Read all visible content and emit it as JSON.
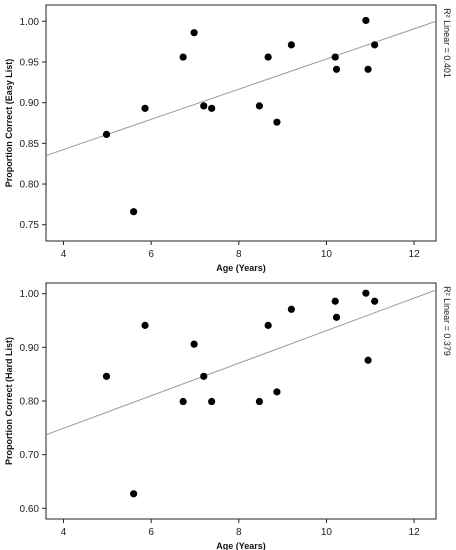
{
  "chart_data": [
    {
      "type": "scatter",
      "xlabel": "Age (Years)",
      "ylabel": "Proportion Correct (Easy List)",
      "xlim": [
        3.6,
        12.5
      ],
      "ylim": [
        0.73,
        1.02
      ],
      "xticks": [
        "4",
        "6",
        "8",
        "10",
        "12"
      ],
      "yticks": [
        "0.75",
        "0.80",
        "0.85",
        "0.90",
        "0.95",
        "1.00"
      ],
      "fit_line": {
        "x": [
          3.6,
          12.5
        ],
        "y": [
          0.835,
          1.0
        ]
      },
      "r2_label": "R² Linear = 0.401",
      "points": [
        {
          "x": 4.98,
          "y": 0.861
        },
        {
          "x": 5.6,
          "y": 0.766
        },
        {
          "x": 5.86,
          "y": 0.893
        },
        {
          "x": 6.73,
          "y": 0.956
        },
        {
          "x": 6.98,
          "y": 0.986
        },
        {
          "x": 7.2,
          "y": 0.896
        },
        {
          "x": 7.38,
          "y": 0.893
        },
        {
          "x": 8.47,
          "y": 0.896
        },
        {
          "x": 8.67,
          "y": 0.956
        },
        {
          "x": 8.87,
          "y": 0.876
        },
        {
          "x": 9.2,
          "y": 0.971
        },
        {
          "x": 10.2,
          "y": 0.956
        },
        {
          "x": 10.23,
          "y": 0.941
        },
        {
          "x": 10.9,
          "y": 1.001
        },
        {
          "x": 10.95,
          "y": 0.941
        },
        {
          "x": 11.1,
          "y": 0.971
        }
      ]
    },
    {
      "type": "scatter",
      "xlabel": "Age (Years)",
      "ylabel": "Proportion Correct (Hard List)",
      "xlim": [
        3.6,
        12.5
      ],
      "ylim": [
        0.58,
        1.02
      ],
      "xticks": [
        "4",
        "6",
        "8",
        "10",
        "12"
      ],
      "yticks": [
        "0.60",
        "0.70",
        "0.80",
        "0.90",
        "1.00"
      ],
      "fit_line": {
        "x": [
          3.6,
          12.5
        ],
        "y": [
          0.737,
          1.007
        ]
      },
      "r2_label": "R² Linear = 0.379",
      "points": [
        {
          "x": 4.98,
          "y": 0.846
        },
        {
          "x": 5.6,
          "y": 0.627
        },
        {
          "x": 5.86,
          "y": 0.941
        },
        {
          "x": 6.73,
          "y": 0.799
        },
        {
          "x": 6.98,
          "y": 0.906
        },
        {
          "x": 7.2,
          "y": 0.846
        },
        {
          "x": 7.38,
          "y": 0.799
        },
        {
          "x": 8.47,
          "y": 0.799
        },
        {
          "x": 8.67,
          "y": 0.941
        },
        {
          "x": 8.87,
          "y": 0.817
        },
        {
          "x": 9.2,
          "y": 0.971
        },
        {
          "x": 10.2,
          "y": 0.986
        },
        {
          "x": 10.23,
          "y": 0.956
        },
        {
          "x": 10.9,
          "y": 1.001
        },
        {
          "x": 10.95,
          "y": 0.876
        },
        {
          "x": 11.1,
          "y": 0.986
        }
      ]
    }
  ]
}
